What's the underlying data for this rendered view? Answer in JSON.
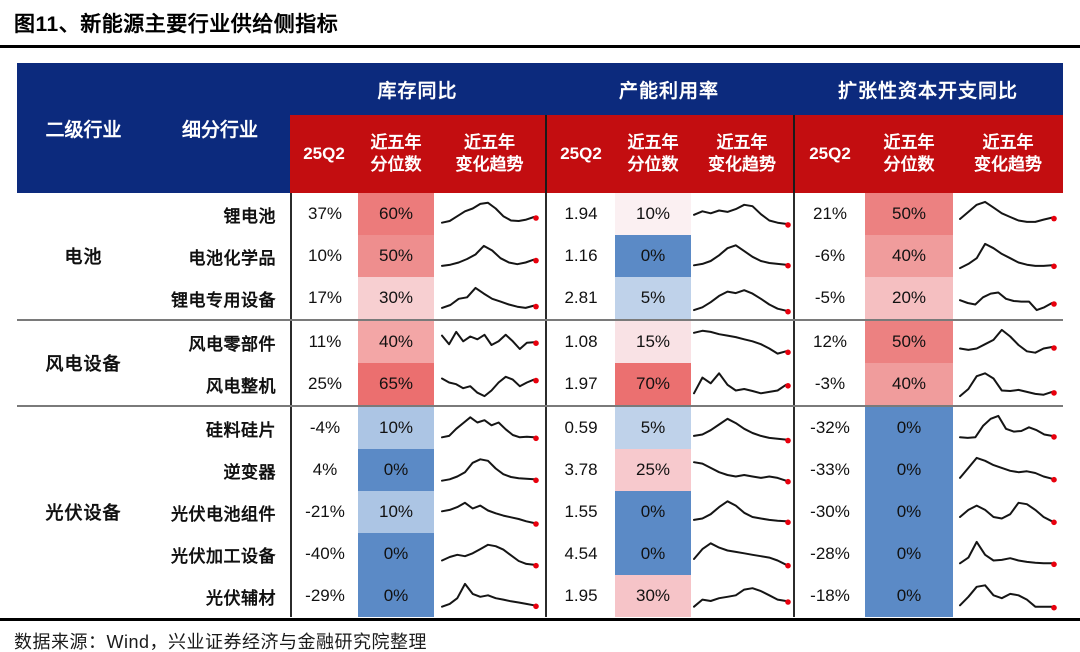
{
  "title": "图11、新能源主要行业供给侧指标",
  "source_note": "数据来源：Wind，兴业证券经济与金融研究院整理",
  "colors": {
    "header_blue": "#0C2A7D",
    "header_red": "#C30D10",
    "spark_line": "#151515",
    "spark_dot": "#E8000D",
    "pct_high": "#EB6F6F",
    "pct_low": "#5B8AC6"
  },
  "header": {
    "sector": "二级行业",
    "industry": "细分行业",
    "groups": [
      "库存同比",
      "产能利用率",
      "扩张性资本开支同比"
    ],
    "q2": "25Q2",
    "pct": "近五年\n分位数",
    "trend": "近五年\n变化趋势"
  },
  "chart_data": {
    "type": "table",
    "title": "图11、新能源主要行业供给侧指标",
    "col_sector": "二级行业",
    "col_industry": "细分行业",
    "column_groups": [
      "库存同比",
      "产能利用率",
      "扩张性资本开支同比"
    ],
    "sub_columns": [
      "25Q2",
      "近五年分位数",
      "近五年变化趋势"
    ],
    "trend_note": "sparkline values normalized 0-1, red dot marks latest point",
    "sector_groups": [
      {
        "name": "电池",
        "rows": [
          {
            "industry": "锂电池",
            "inventory": {
              "q2": "37%",
              "pct": "60%",
              "bg": "#EC7B7B",
              "trend": [
                0.22,
                0.28,
                0.45,
                0.62,
                0.72,
                0.88,
                0.92,
                0.72,
                0.45,
                0.3,
                0.28,
                0.33,
                0.42
              ]
            },
            "capacity": {
              "q2": "1.94",
              "pct": "10%",
              "bg": "#FBF0F2",
              "trend": [
                0.5,
                0.62,
                0.55,
                0.65,
                0.6,
                0.7,
                0.85,
                0.8,
                0.52,
                0.3,
                0.22,
                0.18
              ]
            },
            "capex": {
              "q2": "21%",
              "pct": "50%",
              "bg": "#EC8181",
              "trend": [
                0.35,
                0.6,
                0.85,
                0.95,
                0.75,
                0.55,
                0.42,
                0.3,
                0.25,
                0.25,
                0.33,
                0.4
              ]
            }
          },
          {
            "industry": "电池化学品",
            "inventory": {
              "q2": "10%",
              "pct": "50%",
              "bg": "#EE8E8E",
              "trend": [
                0.18,
                0.22,
                0.3,
                0.42,
                0.58,
                0.88,
                0.72,
                0.45,
                0.3,
                0.24,
                0.3,
                0.4
              ]
            },
            "capacity": {
              "q2": "1.16",
              "pct": "0%",
              "bg": "#5B8AC6",
              "trend": [
                0.2,
                0.25,
                0.35,
                0.55,
                0.8,
                0.9,
                0.7,
                0.5,
                0.35,
                0.28,
                0.25,
                0.22
              ]
            },
            "capex": {
              "q2": "-6%",
              "pct": "40%",
              "bg": "#F09C9C",
              "trend": [
                0.1,
                0.25,
                0.45,
                0.95,
                0.8,
                0.6,
                0.45,
                0.3,
                0.22,
                0.18,
                0.18,
                0.2
              ]
            }
          },
          {
            "industry": "锂电专用设备",
            "inventory": {
              "q2": "17%",
              "pct": "30%",
              "bg": "#F7CFD1",
              "trend": [
                0.18,
                0.28,
                0.5,
                0.55,
                0.88,
                0.68,
                0.5,
                0.4,
                0.3,
                0.22,
                0.18,
                0.26
              ]
            },
            "capacity": {
              "q2": "2.81",
              "pct": "5%",
              "bg": "#BFD2EA",
              "trend": [
                0.1,
                0.2,
                0.38,
                0.6,
                0.75,
                0.7,
                0.8,
                0.68,
                0.5,
                0.3,
                0.15,
                0.08
              ]
            },
            "capex": {
              "q2": "-5%",
              "pct": "20%",
              "bg": "#F5BFC1",
              "trend": [
                0.45,
                0.35,
                0.3,
                0.55,
                0.68,
                0.72,
                0.5,
                0.42,
                0.4,
                0.4,
                0.1,
                0.2,
                0.35
              ]
            }
          }
        ]
      },
      {
        "name": "风电设备",
        "rows": [
          {
            "industry": "风电零部件",
            "inventory": {
              "q2": "11%",
              "pct": "40%",
              "bg": "#F3A6A6",
              "trend": [
                0.75,
                0.45,
                0.88,
                0.55,
                0.72,
                0.62,
                0.78,
                0.42,
                0.55,
                0.78,
                0.55,
                0.28,
                0.5,
                0.52
              ]
            },
            "capacity": {
              "q2": "1.08",
              "pct": "15%",
              "bg": "#F9E2E5",
              "trend": [
                0.85,
                0.92,
                0.88,
                0.8,
                0.75,
                0.7,
                0.62,
                0.55,
                0.45,
                0.3,
                0.12,
                0.2
              ]
            },
            "capex": {
              "q2": "12%",
              "pct": "50%",
              "bg": "#EC8181",
              "trend": [
                0.3,
                0.25,
                0.3,
                0.45,
                0.6,
                0.95,
                0.72,
                0.42,
                0.2,
                0.15,
                0.3,
                0.35
              ]
            }
          },
          {
            "industry": "风电整机",
            "inventory": {
              "q2": "25%",
              "pct": "65%",
              "bg": "#EB6F6F",
              "trend": [
                0.72,
                0.58,
                0.52,
                0.38,
                0.45,
                0.22,
                0.1,
                0.3,
                0.58,
                0.78,
                0.68,
                0.45,
                0.58,
                0.68
              ]
            },
            "capacity": {
              "q2": "1.97",
              "pct": "70%",
              "bg": "#EB7070",
              "trend": [
                0.2,
                0.75,
                0.55,
                0.9,
                0.5,
                0.3,
                0.35,
                0.28,
                0.2,
                0.25,
                0.3,
                0.5
              ]
            },
            "capex": {
              "q2": "-3%",
              "pct": "40%",
              "bg": "#F09C9C",
              "trend": [
                0.1,
                0.35,
                0.8,
                0.9,
                0.72,
                0.3,
                0.28,
                0.32,
                0.25,
                0.18,
                0.15,
                0.25
              ]
            }
          }
        ]
      },
      {
        "name": "光伏设备",
        "rows": [
          {
            "industry": "硅料硅片",
            "inventory": {
              "q2": "-4%",
              "pct": "10%",
              "bg": "#ACC5E4",
              "trend": [
                0.2,
                0.25,
                0.5,
                0.7,
                0.9,
                0.72,
                0.8,
                0.62,
                0.72,
                0.48,
                0.28,
                0.2,
                0.22,
                0.2
              ]
            },
            "capacity": {
              "q2": "0.59",
              "pct": "5%",
              "bg": "#BFD2EA",
              "trend": [
                0.25,
                0.3,
                0.45,
                0.65,
                0.85,
                0.7,
                0.5,
                0.35,
                0.25,
                0.18,
                0.15,
                0.12
              ]
            },
            "capex": {
              "q2": "-32%",
              "pct": "0%",
              "bg": "#5B8AC6",
              "trend": [
                0.2,
                0.18,
                0.2,
                0.6,
                0.85,
                0.95,
                0.5,
                0.4,
                0.42,
                0.55,
                0.45,
                0.3,
                0.25
              ]
            }
          },
          {
            "industry": "逆变器",
            "inventory": {
              "q2": "4%",
              "pct": "0%",
              "bg": "#5B8AC6",
              "trend": [
                0.15,
                0.2,
                0.3,
                0.45,
                0.78,
                0.9,
                0.85,
                0.58,
                0.38,
                0.28,
                0.24,
                0.22,
                0.2
              ]
            },
            "capacity": {
              "q2": "3.78",
              "pct": "25%",
              "bg": "#F7C9CD",
              "trend": [
                0.8,
                0.75,
                0.6,
                0.45,
                0.35,
                0.3,
                0.35,
                0.3,
                0.25,
                0.3,
                0.25,
                0.15
              ]
            },
            "capex": {
              "q2": "-33%",
              "pct": "0%",
              "bg": "#5B8AC6",
              "trend": [
                0.25,
                0.6,
                0.95,
                0.85,
                0.7,
                0.6,
                0.5,
                0.45,
                0.48,
                0.42,
                0.3,
                0.22
              ]
            }
          },
          {
            "industry": "光伏电池组件",
            "inventory": {
              "q2": "-21%",
              "pct": "10%",
              "bg": "#ACC5E4",
              "trend": [
                0.55,
                0.6,
                0.7,
                0.85,
                0.65,
                0.75,
                0.58,
                0.48,
                0.4,
                0.34,
                0.28,
                0.2,
                0.14
              ]
            },
            "capacity": {
              "q2": "1.55",
              "pct": "0%",
              "bg": "#5B8AC6",
              "trend": [
                0.25,
                0.3,
                0.45,
                0.7,
                0.9,
                0.75,
                0.5,
                0.35,
                0.3,
                0.25,
                0.22,
                0.2
              ]
            },
            "capex": {
              "q2": "-30%",
              "pct": "0%",
              "bg": "#5B8AC6",
              "trend": [
                0.35,
                0.6,
                0.75,
                0.6,
                0.35,
                0.3,
                0.45,
                0.85,
                0.8,
                0.6,
                0.35,
                0.2
              ]
            }
          },
          {
            "industry": "光伏加工设备",
            "inventory": {
              "q2": "-40%",
              "pct": "0%",
              "bg": "#5B8AC6",
              "trend": [
                0.3,
                0.42,
                0.5,
                0.45,
                0.55,
                0.7,
                0.85,
                0.8,
                0.68,
                0.48,
                0.28,
                0.18,
                0.15
              ]
            },
            "capacity": {
              "q2": "4.54",
              "pct": "0%",
              "bg": "#5B8AC6",
              "trend": [
                0.35,
                0.7,
                0.9,
                0.75,
                0.65,
                0.6,
                0.55,
                0.5,
                0.45,
                0.4,
                0.3,
                0.15
              ]
            },
            "capex": {
              "q2": "-28%",
              "pct": "0%",
              "bg": "#5B8AC6",
              "trend": [
                0.2,
                0.4,
                0.95,
                0.5,
                0.3,
                0.32,
                0.38,
                0.3,
                0.25,
                0.22,
                0.2,
                0.2
              ]
            }
          },
          {
            "industry": "光伏辅材",
            "inventory": {
              "q2": "-29%",
              "pct": "0%",
              "bg": "#5B8AC6",
              "trend": [
                0.15,
                0.25,
                0.45,
                0.95,
                0.6,
                0.5,
                0.55,
                0.45,
                0.4,
                0.34,
                0.3,
                0.25,
                0.2
              ]
            },
            "capacity": {
              "q2": "1.95",
              "pct": "30%",
              "bg": "#F6C4C8",
              "trend": [
                0.15,
                0.4,
                0.35,
                0.45,
                0.5,
                0.55,
                0.75,
                0.8,
                0.7,
                0.55,
                0.4,
                0.35
              ]
            },
            "capex": {
              "q2": "-18%",
              "pct": "0%",
              "bg": "#5B8AC6",
              "trend": [
                0.2,
                0.5,
                0.85,
                0.9,
                0.55,
                0.45,
                0.6,
                0.55,
                0.4,
                0.15,
                0.15,
                0.15
              ]
            }
          }
        ]
      }
    ]
  }
}
